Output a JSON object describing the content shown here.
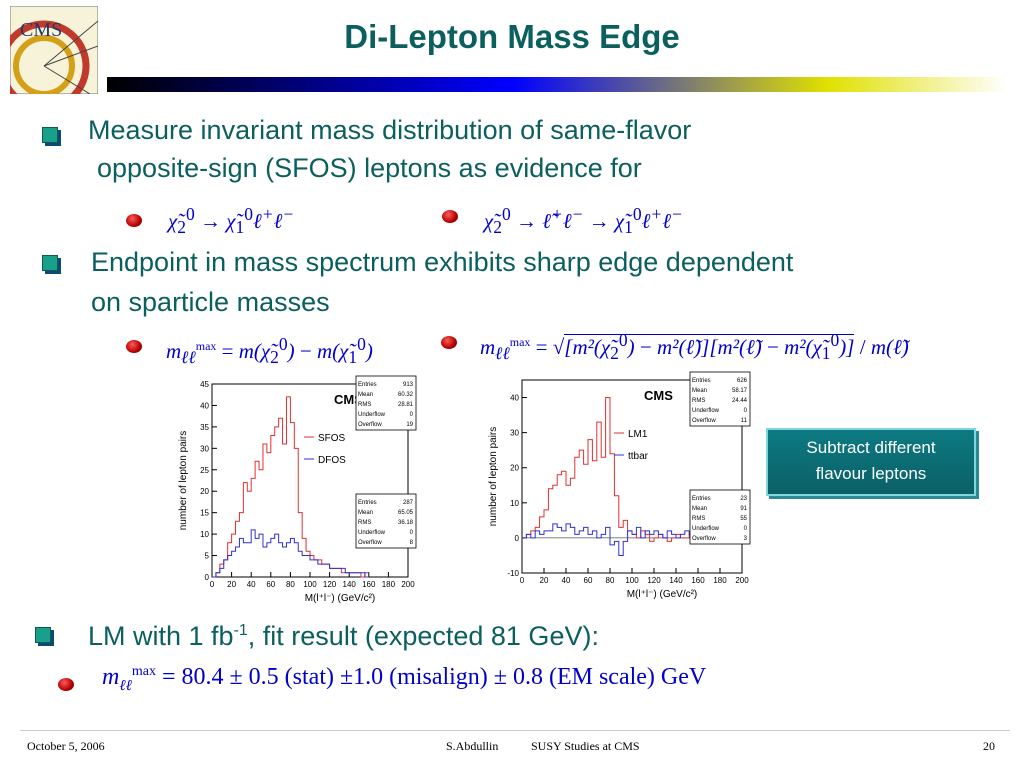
{
  "title": "Di-Lepton Mass Edge",
  "logo_text": "CMS",
  "bullets": [
    {
      "line1": "Measure invariant mass distribution of same-flavor",
      "line2": "opposite-sign (SFOS) leptons as evidence for"
    },
    {
      "line1": "Endpoint in mass spectrum exhibits sharp edge dependent",
      "line2": "on sparticle masses"
    },
    {
      "prefix": "LM with 1 fb",
      "sup": "-1",
      "suffix": ", fit result (expected 81 GeV):"
    }
  ],
  "result": {
    "value": "= 80.4 ± 0.5 (stat)  ±1.0 (misalign)  ± 0.8 (EM scale) GeV"
  },
  "callout": {
    "line1": "Subtract different",
    "line2": "flavour leptons"
  },
  "footer": {
    "date": "October 5, 2006",
    "author": "S.Abdullin",
    "topic": "SUSY Studies at CMS",
    "page": "20"
  },
  "plot_left": {
    "label": "CMS",
    "ylabel": "number of lepton pairs",
    "xlabel": "M(l⁺l⁻) (GeV/c²)",
    "yticks": [
      "0",
      "5",
      "10",
      "15",
      "20",
      "25",
      "30",
      "35",
      "40",
      "45"
    ],
    "xticks": [
      "0",
      "20",
      "40",
      "60",
      "80",
      "100",
      "120",
      "140",
      "160",
      "180",
      "200"
    ],
    "legend": [
      {
        "name": "SFOS",
        "color": "#e03030"
      },
      {
        "name": "DFOS",
        "color": "#3030d0"
      }
    ],
    "stats": [
      {
        "rows": [
          [
            "Entries",
            "913"
          ],
          [
            "Mean",
            "60.32"
          ],
          [
            "RMS",
            "28.81"
          ],
          [
            "Underflow",
            "0"
          ],
          [
            "Overflow",
            "19"
          ]
        ]
      },
      {
        "rows": [
          [
            "Entries",
            "287"
          ],
          [
            "Mean",
            "65.05"
          ],
          [
            "RMS",
            "36.18"
          ],
          [
            "Underflow",
            "0"
          ],
          [
            "Overflow",
            "8"
          ]
        ]
      }
    ]
  },
  "plot_right": {
    "label": "CMS",
    "ylabel": "number of lepton pairs",
    "xlabel": "M(l⁺l⁻) (GeV/c²)",
    "yticks": [
      "-10",
      "0",
      "10",
      "20",
      "30",
      "40"
    ],
    "xticks": [
      "0",
      "20",
      "40",
      "60",
      "80",
      "100",
      "120",
      "140",
      "160",
      "180",
      "200"
    ],
    "legend": [
      {
        "name": "LM1",
        "color": "#e03030"
      },
      {
        "name": "ttbar",
        "color": "#3030d0"
      }
    ],
    "stats": [
      {
        "rows": [
          [
            "Entries",
            "626"
          ],
          [
            "Mean",
            "58.17"
          ],
          [
            "RMS",
            "24.44"
          ],
          [
            "Underflow",
            "0"
          ],
          [
            "Overflow",
            "11"
          ]
        ]
      },
      {
        "rows": [
          [
            "Entries",
            "23"
          ],
          [
            "Mean",
            "91"
          ],
          [
            "RMS",
            "55"
          ],
          [
            "Underflow",
            "0"
          ],
          [
            "Overflow",
            "3"
          ]
        ]
      }
    ]
  },
  "chart_data": [
    {
      "type": "bar",
      "ylabel": "number of lepton pairs",
      "xlabel": "M(l⁺l⁻) (GeV/c²)",
      "xlim": [
        0,
        200
      ],
      "ylim": [
        0,
        45
      ],
      "x": [
        2,
        6,
        10,
        14,
        18,
        22,
        26,
        30,
        34,
        38,
        42,
        46,
        50,
        54,
        58,
        62,
        66,
        70,
        74,
        78,
        82,
        86,
        90,
        94,
        98,
        102,
        106,
        110,
        114,
        118,
        122,
        126,
        130,
        134,
        138,
        142,
        146,
        150,
        154,
        158
      ],
      "series": [
        {
          "name": "SFOS",
          "values": [
            0,
            1,
            3,
            4,
            8,
            10,
            13,
            15,
            22,
            20,
            23,
            27,
            25,
            31,
            29,
            33,
            35,
            37,
            31,
            42,
            36,
            30,
            15,
            9,
            6,
            5,
            4,
            4,
            3,
            3,
            2,
            2,
            2,
            1,
            1,
            1,
            1,
            1,
            0,
            1
          ]
        },
        {
          "name": "DFOS",
          "values": [
            0,
            1,
            2,
            4,
            5,
            6,
            7,
            9,
            8,
            8,
            11,
            9,
            10,
            7,
            8,
            9,
            10,
            8,
            7,
            8,
            9,
            8,
            6,
            5,
            5,
            4,
            4,
            3,
            3,
            3,
            2,
            2,
            2,
            2,
            1,
            1,
            1,
            1,
            1,
            0
          ]
        }
      ]
    },
    {
      "type": "bar",
      "ylabel": "number of lepton pairs",
      "xlabel": "M(l⁺l⁻) (GeV/c²)",
      "xlim": [
        0,
        200
      ],
      "ylim": [
        -10,
        45
      ],
      "x": [
        2,
        6,
        10,
        14,
        18,
        22,
        26,
        30,
        34,
        38,
        42,
        46,
        50,
        54,
        58,
        62,
        66,
        70,
        74,
        78,
        82,
        86,
        90,
        94,
        98,
        102,
        106,
        110,
        114,
        118,
        122,
        126,
        130,
        134,
        138,
        142,
        146,
        150,
        154,
        158
      ],
      "series": [
        {
          "name": "LM1",
          "values": [
            0,
            1,
            2,
            3,
            6,
            8,
            14,
            15,
            18,
            19,
            15,
            17,
            23,
            25,
            21,
            28,
            22,
            33,
            23,
            40,
            24,
            12,
            3,
            5,
            2,
            1,
            0,
            2,
            1,
            -1,
            0,
            1,
            0,
            -1,
            0,
            1,
            0,
            0,
            1,
            0
          ]
        },
        {
          "name": "ttbar",
          "values": [
            0,
            1,
            0,
            2,
            1,
            2,
            2,
            4,
            3,
            2,
            4,
            3,
            1,
            2,
            3,
            1,
            2,
            0,
            1,
            3,
            -2,
            -1,
            -5,
            -1,
            2,
            1,
            3,
            0,
            2,
            1,
            2,
            1,
            0,
            2,
            1,
            0,
            1,
            2,
            1,
            0
          ]
        }
      ]
    }
  ]
}
